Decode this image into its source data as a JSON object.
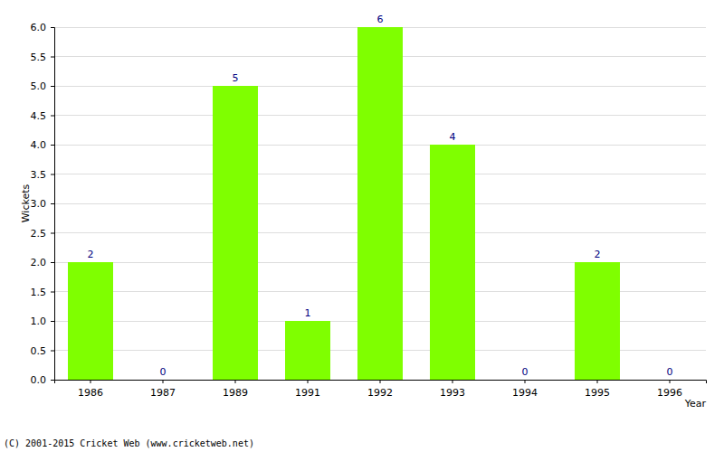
{
  "chart_data": {
    "type": "bar",
    "categories": [
      "1986",
      "1987",
      "1989",
      "1991",
      "1992",
      "1993",
      "1994",
      "1995",
      "1996"
    ],
    "values": [
      2,
      0,
      5,
      1,
      6,
      4,
      0,
      2,
      0
    ],
    "color": "#7fff00",
    "x_label": "Year",
    "y_label": "Wickets",
    "annotations": [
      "(C) 2001-2015 Cricket Web (www.cricketweb.net)"
    ],
    "ylim": [
      0,
      6
    ],
    "yticks": [
      {
        "value": 0,
        "label": "0.0"
      },
      {
        "value": 0.5,
        "label": "0.5"
      },
      {
        "value": 1,
        "label": "1.0"
      },
      {
        "value": 1.5,
        "label": "1.5"
      },
      {
        "value": 2,
        "label": "2.0"
      },
      {
        "value": 2.5,
        "label": "2.5"
      },
      {
        "value": 3,
        "label": "3.0"
      },
      {
        "value": 3.5,
        "label": "3.5"
      },
      {
        "value": 4,
        "label": "4.0"
      },
      {
        "value": 4.5,
        "label": "4.5"
      },
      {
        "value": 5,
        "label": "5.0"
      },
      {
        "value": 5.5,
        "label": "5.5"
      },
      {
        "value": 6,
        "label": "6.0"
      }
    ],
    "grid": true,
    "data_labels": true
  }
}
